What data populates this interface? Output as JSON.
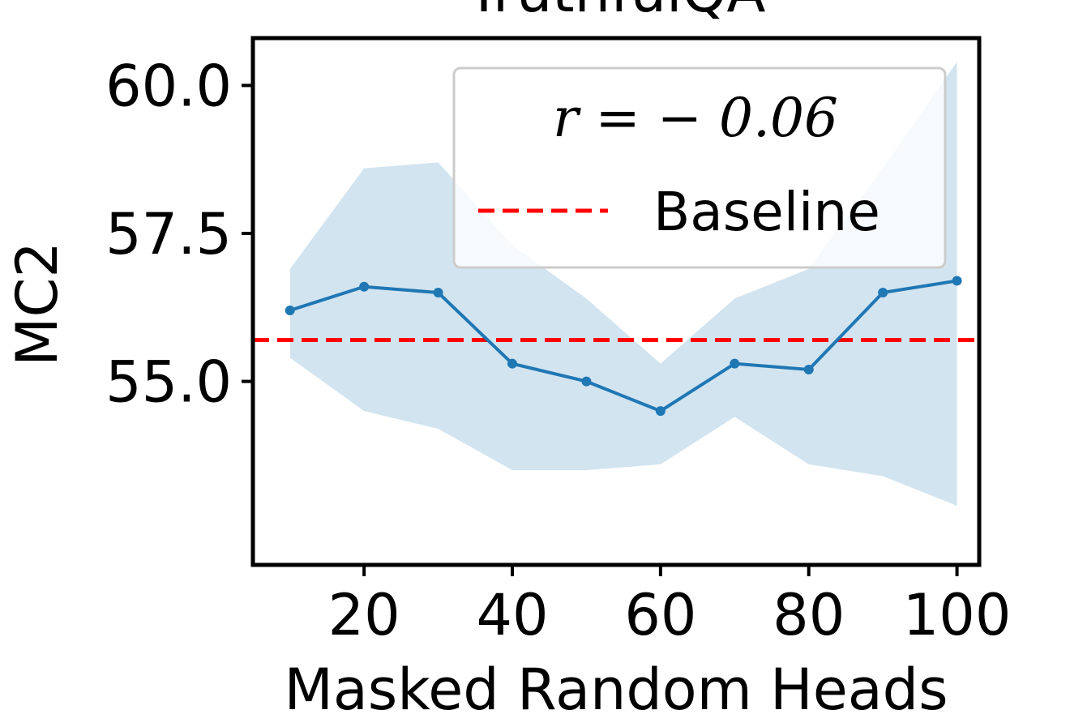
{
  "chart_data": {
    "type": "line",
    "title": "TruthfulQA",
    "xlabel": "Masked Random Heads",
    "ylabel": "MC2",
    "xlim": [
      5,
      103
    ],
    "ylim": [
      51.9,
      60.8
    ],
    "x_ticks": [
      20,
      40,
      60,
      80,
      100
    ],
    "x_tick_labels": [
      "20",
      "40",
      "60",
      "80",
      "100"
    ],
    "y_ticks": [
      55.0,
      57.5,
      60.0
    ],
    "y_tick_labels": [
      "55.0",
      "57.5",
      "60.0"
    ],
    "grid": false,
    "legend_position": "top-right",
    "series": [
      {
        "name": "r = −0.06",
        "color": "#1f77b4",
        "x": [
          10,
          20,
          30,
          40,
          50,
          60,
          70,
          80,
          90,
          100
        ],
        "values": [
          56.2,
          56.6,
          56.5,
          55.3,
          55.0,
          54.5,
          55.3,
          55.2,
          56.5,
          56.7
        ],
        "band_upper": [
          56.9,
          58.6,
          58.7,
          57.3,
          56.4,
          55.3,
          56.4,
          56.9,
          58.6,
          60.4
        ],
        "band_lower": [
          55.4,
          54.5,
          54.2,
          53.5,
          53.5,
          53.6,
          54.4,
          53.6,
          53.4,
          52.9
        ]
      }
    ],
    "baseline": {
      "name": "Baseline",
      "value": 55.7,
      "color": "#ff0000",
      "style": "dashed"
    },
    "legend": {
      "correlation_label": "r = − 0.06",
      "baseline_label": "Baseline"
    }
  }
}
